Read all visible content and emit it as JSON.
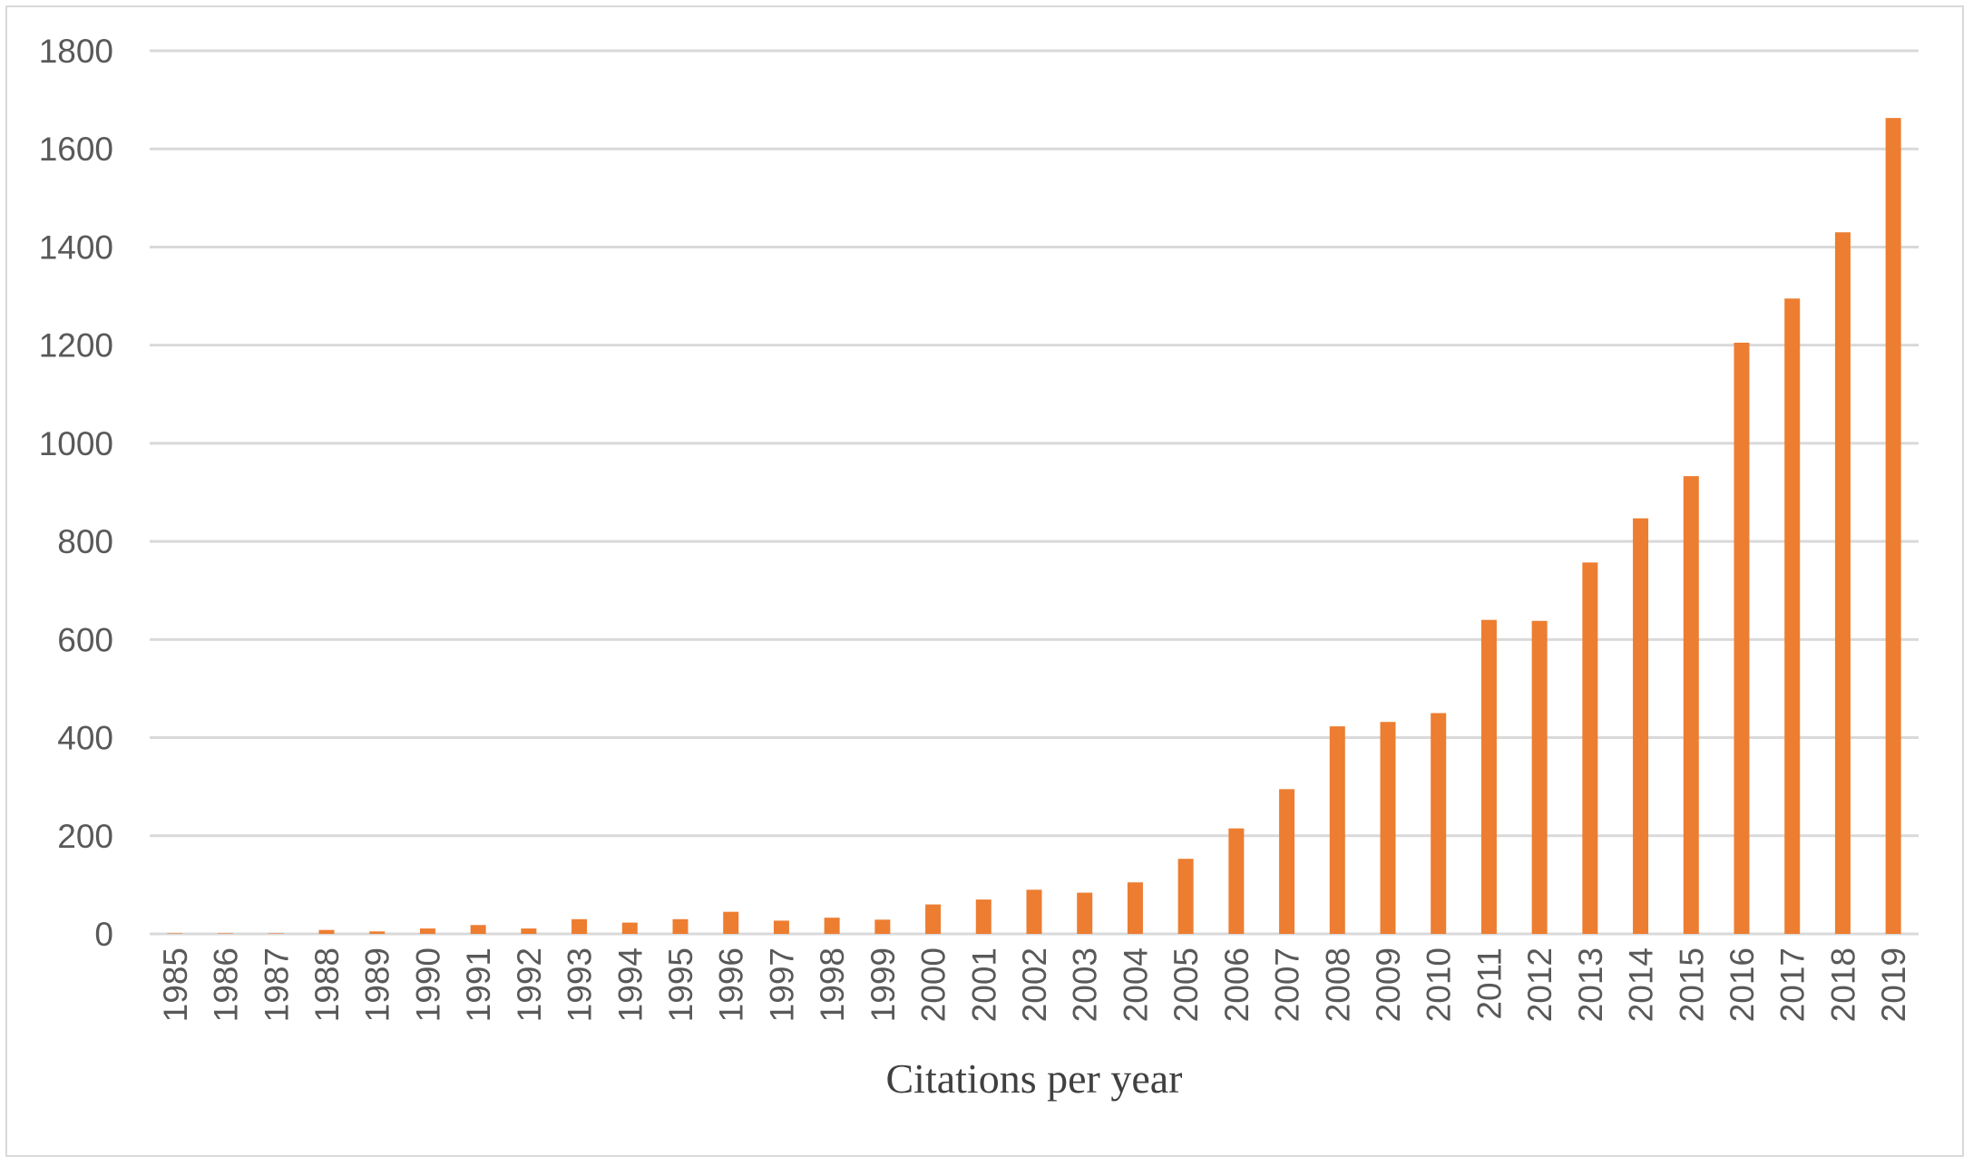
{
  "chart_data": {
    "type": "bar",
    "title": "",
    "xlabel": "Citations per year",
    "ylabel": "",
    "ylim": [
      0,
      1800
    ],
    "yticks": [
      "0",
      "200",
      "400",
      "600",
      "800",
      "1000",
      "1200",
      "1400",
      "1600",
      "1800"
    ],
    "grid": true,
    "legend": "none",
    "bar_color": "#ed7d31",
    "categories": [
      "1985",
      "1986",
      "1987",
      "1988",
      "1989",
      "1990",
      "1991",
      "1992",
      "1993",
      "1994",
      "1995",
      "1996",
      "1997",
      "1998",
      "1999",
      "2000",
      "2001",
      "2002",
      "2003",
      "2004",
      "2005",
      "2006",
      "2007",
      "2008",
      "2009",
      "2010",
      "2011",
      "2012",
      "2013",
      "2014",
      "2015",
      "2016",
      "2017",
      "2018",
      "2019"
    ],
    "values": [
      1,
      1,
      1,
      8,
      5,
      11,
      18,
      11,
      30,
      23,
      30,
      45,
      27,
      33,
      29,
      60,
      70,
      90,
      84,
      105,
      153,
      215,
      295,
      423,
      432,
      450,
      640,
      638,
      757,
      847,
      933,
      1205,
      1295,
      1430,
      1663
    ]
  }
}
